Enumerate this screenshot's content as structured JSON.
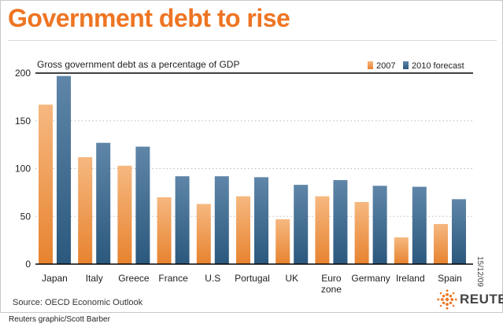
{
  "header": {
    "title": "Government debt to rise"
  },
  "colors": {
    "accent": "#ee7523",
    "series_2007_top": "#f6b880",
    "series_2007_bottom": "#e7832f",
    "series_2010_top": "#5f86a8",
    "series_2010_bottom": "#2b587d",
    "gridline": "#bbbbbb",
    "axis": "#000000"
  },
  "chart_data": {
    "type": "bar",
    "subtitle": "Gross government debt as a percentage of GDP",
    "categories": [
      "Japan",
      "Italy",
      "Greece",
      "France",
      "U.S",
      "Portugal",
      "UK",
      "Euro zone",
      "Germany",
      "Ireland",
      "Spain"
    ],
    "category_lines": [
      [
        "Japan"
      ],
      [
        "Italy"
      ],
      [
        "Greece"
      ],
      [
        "France"
      ],
      [
        "U.S"
      ],
      [
        "Portugal"
      ],
      [
        "UK"
      ],
      [
        "Euro",
        "zone"
      ],
      [
        "Germany"
      ],
      [
        "Ireland"
      ],
      [
        "Spain"
      ]
    ],
    "series": [
      {
        "name": "2007",
        "values": [
          167,
          112,
          103,
          70,
          63,
          71,
          47,
          71,
          65,
          28,
          42
        ]
      },
      {
        "name": "2010 forecast",
        "values": [
          197,
          127,
          123,
          92,
          92,
          91,
          83,
          88,
          82,
          81,
          68
        ]
      }
    ],
    "ylim": [
      0,
      200
    ],
    "yticks": [
      0,
      50,
      100,
      150,
      200
    ],
    "grid": true,
    "legend_position": "top-right"
  },
  "footer": {
    "date": "15/12/09",
    "source": "Source: OECD Economic Outlook",
    "brand": "REUTERS",
    "credit": "Reuters graphic/Scott Barber"
  }
}
